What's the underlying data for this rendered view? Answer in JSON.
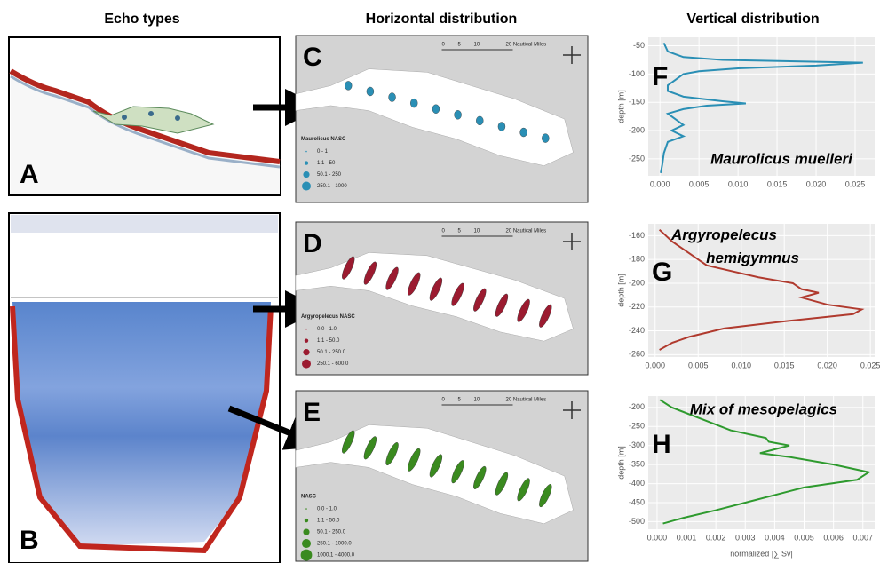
{
  "headers": [
    "Echo types",
    "Horizontal distribution",
    "Vertical distribution"
  ],
  "panels": [
    "A",
    "B"
  ],
  "maps": [
    {
      "panel": "C",
      "color": "#2a8fb5",
      "legend_title": "Maurolicus NASC",
      "legend_items": [
        "0 - 1",
        "1.1 - 50",
        "50.1 - 250",
        "250.1 - 1000"
      ],
      "scale_labels": [
        "0",
        "5",
        "10",
        "20 Nautical Miles"
      ]
    },
    {
      "panel": "D",
      "color": "#9b1b30",
      "legend_title": "Argyropelecus NASC",
      "legend_items": [
        "0.0 - 1.0",
        "1.1 - 50.0",
        "50.1 - 250.0",
        "250.1 - 600.0"
      ],
      "scale_labels": [
        "0",
        "5",
        "10",
        "20 Nautical Miles"
      ]
    },
    {
      "panel": "E",
      "color": "#3a8a1f",
      "legend_title": "NASC",
      "legend_items": [
        "0.0 - 1.0",
        "1.1 - 50.0",
        "50.1 - 250.0",
        "250.1 - 1000.0",
        "1000.1 - 4000.0"
      ],
      "scale_labels": [
        "0",
        "5",
        "10",
        "20 Nautical Miles"
      ]
    }
  ],
  "chart_data": [
    {
      "type": "line",
      "panel": "F",
      "annotation": "Maurolicus muelleri",
      "ylabel": "depth [m]",
      "color": "#2a8fb5",
      "grid": true,
      "depth": [
        -45,
        -60,
        -70,
        -75,
        -80,
        -85,
        -90,
        -95,
        -100,
        -110,
        -120,
        -130,
        -140,
        -148,
        -152,
        -156,
        -162,
        -170,
        -180,
        -190,
        -200,
        -210,
        -220,
        -240,
        -260,
        -275
      ],
      "values": [
        0.0005,
        0.001,
        0.003,
        0.008,
        0.026,
        0.02,
        0.01,
        0.005,
        0.003,
        0.002,
        0.001,
        0.001,
        0.003,
        0.008,
        0.011,
        0.006,
        0.003,
        0.001,
        0.002,
        0.003,
        0.0015,
        0.003,
        0.001,
        0.0005,
        0.0003,
        0.0001
      ],
      "xlim": [
        -0.0015,
        0.0275
      ],
      "ylim": [
        -280,
        -35
      ],
      "xticks": [
        {
          "value": 0,
          "label": "0.000"
        },
        {
          "value": 0.005,
          "label": "0.005"
        },
        {
          "value": 0.01,
          "label": "0.010"
        },
        {
          "value": 0.015,
          "label": "0.015"
        },
        {
          "value": 0.02,
          "label": "0.020"
        },
        {
          "value": 0.025,
          "label": "0.025"
        }
      ],
      "yticks": [
        -50,
        -100,
        -150,
        -200,
        -250
      ]
    },
    {
      "type": "line",
      "panel": "G",
      "annotation": "Argyropelecus hemigymnus",
      "ylabel": "depth [m]",
      "color": "#b03a2e",
      "grid": true,
      "depth": [
        -155,
        -165,
        -175,
        -180,
        -185,
        -190,
        -195,
        -200,
        -205,
        -208,
        -212,
        -218,
        -222,
        -226,
        -232,
        -238,
        -245,
        -250,
        -256
      ],
      "values": [
        0.0005,
        0.002,
        0.004,
        0.005,
        0.006,
        0.009,
        0.012,
        0.016,
        0.017,
        0.019,
        0.017,
        0.02,
        0.024,
        0.023,
        0.015,
        0.008,
        0.004,
        0.002,
        0.0005
      ],
      "xlim": [
        -0.0008,
        0.0255
      ],
      "ylim": [
        -262,
        -150
      ],
      "xticks": [
        {
          "value": 0,
          "label": "0.000"
        },
        {
          "value": 0.005,
          "label": "0.005"
        },
        {
          "value": 0.01,
          "label": "0.010"
        },
        {
          "value": 0.015,
          "label": "0.015"
        },
        {
          "value": 0.02,
          "label": "0.020"
        },
        {
          "value": 0.025,
          "label": "0.025"
        }
      ],
      "yticks": [
        -160,
        -180,
        -200,
        -220,
        -240,
        -260
      ]
    },
    {
      "type": "line",
      "panel": "H",
      "annotation": "Mix of mesopelagics",
      "ylabel": "depth [m]",
      "xlabel": "normalized |∑ Sv|",
      "color": "#2e9a2e",
      "grid": true,
      "depth": [
        -180,
        -200,
        -230,
        -260,
        -280,
        -290,
        -300,
        -310,
        -320,
        -330,
        -350,
        -370,
        -390,
        -410,
        -430,
        -450,
        -470,
        -490,
        -505
      ],
      "values": [
        0.0001,
        0.0005,
        0.0015,
        0.0025,
        0.0037,
        0.0038,
        0.0045,
        0.004,
        0.0035,
        0.0045,
        0.006,
        0.0072,
        0.0068,
        0.005,
        0.004,
        0.003,
        0.002,
        0.0009,
        0.0002
      ],
      "xlim": [
        -0.0003,
        0.0074
      ],
      "ylim": [
        -520,
        -170
      ],
      "xticks": [
        {
          "value": 0,
          "label": "0.000"
        },
        {
          "value": 0.001,
          "label": "0.001"
        },
        {
          "value": 0.002,
          "label": "0.002"
        },
        {
          "value": 0.003,
          "label": "0.003"
        },
        {
          "value": 0.004,
          "label": "0.004"
        },
        {
          "value": 0.005,
          "label": "0.005"
        },
        {
          "value": 0.006,
          "label": "0.006"
        },
        {
          "value": 0.007,
          "label": "0.007"
        }
      ],
      "yticks": [
        -200,
        -250,
        -300,
        -350,
        -400,
        -450,
        -500
      ]
    }
  ]
}
